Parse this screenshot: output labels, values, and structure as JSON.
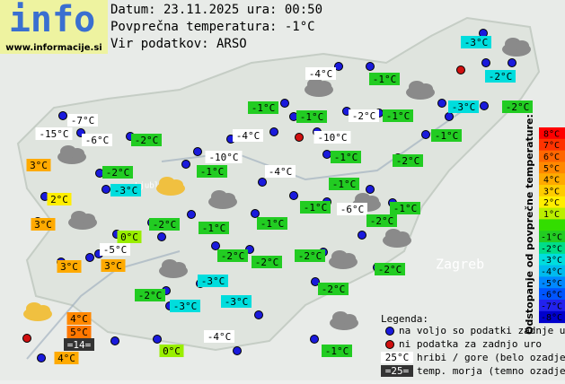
{
  "logo": {
    "title": "info",
    "url": "www.informacije.si"
  },
  "header": {
    "date": "Datum: 23.11.2025 ura: 00:50",
    "average": "Povprečna temperatura: -1°C",
    "source": "Vir podatkov: ARSO"
  },
  "stations": [
    "-3°C",
    "-4°C",
    "-1°C",
    "-2°C",
    "-1°C",
    "-1°C",
    "-2°C",
    "-1°C",
    "-3°C",
    "-2°C",
    "-7°C",
    "-15°C",
    "-6°C",
    "-2°C",
    "-4°C",
    "-10°C",
    "-1°C",
    "3°C",
    "-10°C",
    "-1°C",
    "-2°C",
    "-1°C",
    "-4°C",
    "-2°C",
    "-3°C",
    "-1°C",
    "2°C",
    "-1°C",
    "-6°C",
    "-1°C",
    "3°C",
    "-2°C",
    "-1°C",
    "-1°C",
    "-2°C",
    "0°C",
    "-5°C",
    "-2°C",
    "-2°C",
    "-2°C",
    "3°C",
    "3°C",
    "-2°C",
    "-3°C",
    "-2°C",
    "-2°C",
    "-3°C",
    "-3°C",
    "4°C",
    "5°C",
    "=14=",
    "4°C",
    "-4°C",
    "0°C",
    "-1°C"
  ],
  "places": [
    "Zagreb",
    "Ljubljana"
  ],
  "scale": {
    "title": "Odstopanje od povprečne temperature:",
    "labels": [
      "8°C",
      "7°C",
      "6°C",
      "5°C",
      "4°C",
      "3°C",
      "2°C",
      "1°C",
      "-1°C",
      "-2°C",
      "-3°C",
      "-4°C",
      "-5°C",
      "-6°C",
      "-7°C",
      "-8°C"
    ]
  },
  "legend": {
    "title": "Legenda:",
    "available": "na voljo so podatki zadnje ure",
    "missing": "ni podatka za zadnjo uro",
    "mountain_sample": "25°C",
    "mountain": "hribi / gore (belo ozadje)",
    "sea_sample": "=25=",
    "sea": "temp. morja (temno ozadje)"
  }
}
